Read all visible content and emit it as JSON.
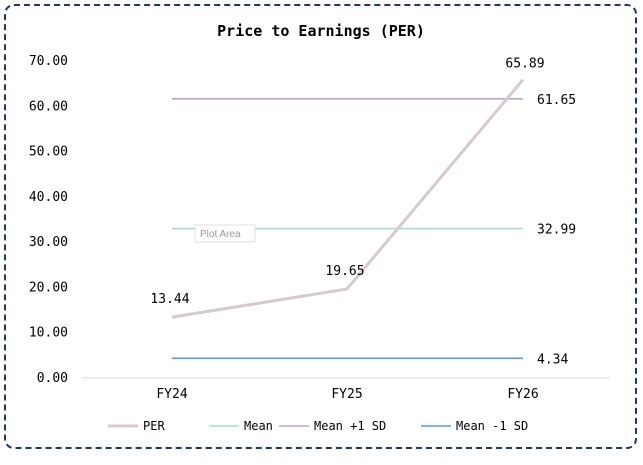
{
  "chart_data": {
    "type": "line",
    "title": "Price to Earnings (PER)",
    "categories": [
      "FY24",
      "FY25",
      "FY26"
    ],
    "ylim": [
      0,
      70
    ],
    "yticks": [
      "0.00",
      "10.00",
      "20.00",
      "30.00",
      "40.00",
      "50.00",
      "60.00",
      "70.00"
    ],
    "grid": false,
    "legend_position": "bottom",
    "series": [
      {
        "name": "PER",
        "values": [
          13.44,
          19.65,
          65.89
        ],
        "labels": [
          "13.44",
          "19.65",
          "65.89"
        ],
        "color": "#d6c9cf"
      },
      {
        "name": "Mean",
        "values": [
          32.99,
          32.99,
          32.99
        ],
        "labels": [
          "",
          "",
          "32.99"
        ],
        "color": "#a9dcc6"
      },
      {
        "name": "Mean +1 SD",
        "values": [
          61.65,
          61.65,
          61.65
        ],
        "labels": [
          "",
          "",
          "61.65"
        ],
        "color": "#b4a7d6"
      },
      {
        "name": "Mean -1 SD",
        "values": [
          4.34,
          4.34,
          4.34
        ],
        "labels": [
          "",
          "",
          "4.34"
        ],
        "color": "#5b9bd5"
      }
    ],
    "hover_tooltip": "Plot Area"
  }
}
